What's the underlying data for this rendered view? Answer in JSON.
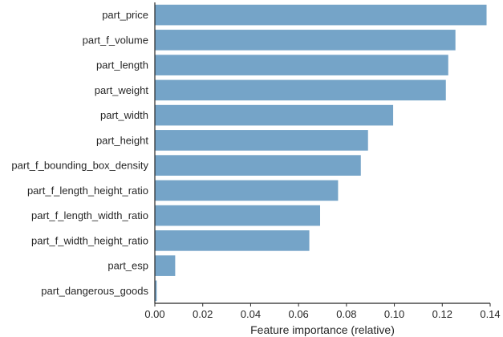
{
  "chart_data": {
    "type": "bar",
    "orientation": "horizontal",
    "title": "",
    "xlabel": "Feature importance (relative)",
    "ylabel": "",
    "xlim": [
      0,
      0.14
    ],
    "xticks": [
      0.0,
      0.02,
      0.04,
      0.06,
      0.08,
      0.1,
      0.12,
      0.14
    ],
    "xtick_labels": [
      "0.00",
      "0.02",
      "0.04",
      "0.06",
      "0.08",
      "0.10",
      "0.12",
      "0.14"
    ],
    "grid": false,
    "bar_color": "#75a4c8",
    "categories": [
      "part_price",
      "part_f_volume",
      "part_length",
      "part_weight",
      "part_width",
      "part_height",
      "part_f_bounding_box_density",
      "part_f_length_height_ratio",
      "part_f_length_width_ratio",
      "part_f_width_height_ratio",
      "part_esp",
      "part_dangerous_goods"
    ],
    "values": [
      0.1385,
      0.1255,
      0.1225,
      0.1215,
      0.0995,
      0.089,
      0.086,
      0.0765,
      0.069,
      0.0645,
      0.0085,
      0.0008
    ]
  }
}
